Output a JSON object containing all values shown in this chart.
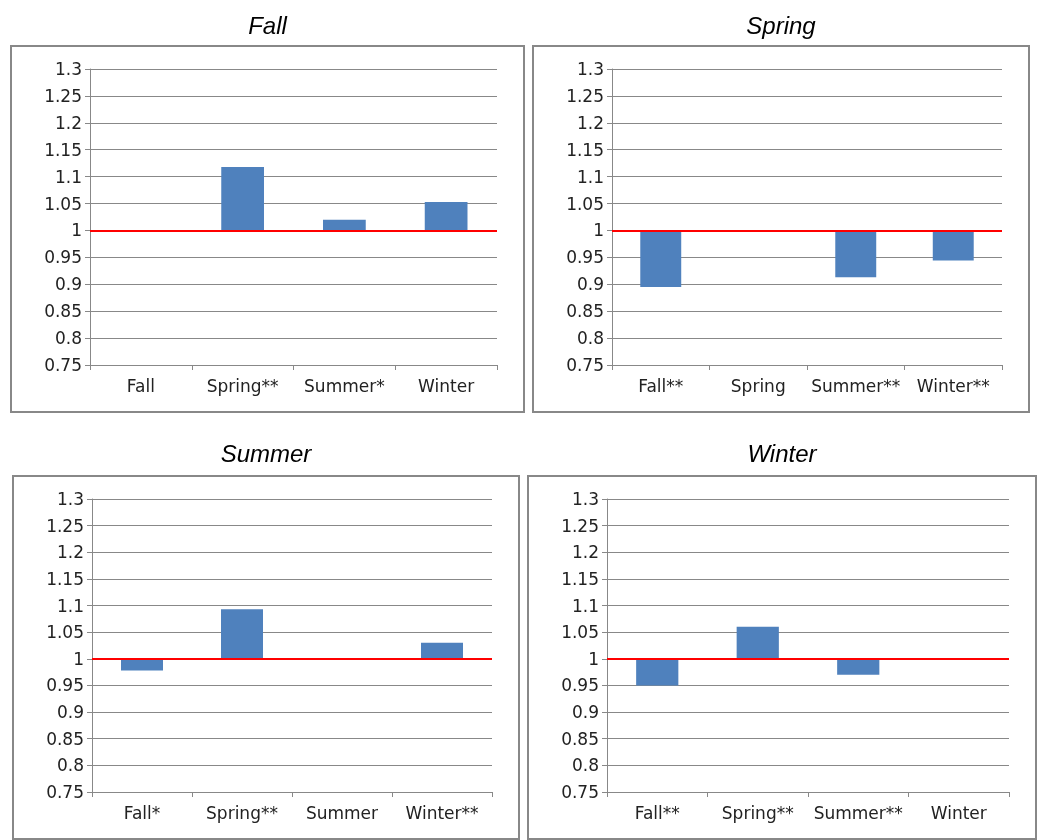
{
  "chart_data": [
    {
      "type": "bar",
      "title": "Fall",
      "categories": [
        "Fall",
        "Spring**",
        "Summer*",
        "Winter"
      ],
      "values": [
        null,
        0.118,
        0.02,
        0.053
      ],
      "base": [
        null,
        1,
        1,
        1
      ],
      "color": "#4f81bd",
      "ylim": [
        0.75,
        1.3
      ],
      "yticks": [
        0.75,
        0.8,
        0.85,
        0.9,
        0.95,
        1,
        1.05,
        1.1,
        1.15,
        1.2,
        1.25,
        1.3
      ],
      "grid": "y",
      "ref_lines": [
        {
          "axis": "y",
          "value": 1,
          "color": "#ff0000"
        }
      ]
    },
    {
      "type": "bar",
      "title": "Spring",
      "categories": [
        "Fall**",
        "Spring",
        "Summer**",
        "Winter**"
      ],
      "values": [
        -0.105,
        null,
        -0.087,
        -0.056
      ],
      "base": [
        1,
        null,
        1,
        1
      ],
      "color": "#4f81bd",
      "ylim": [
        0.75,
        1.3
      ],
      "yticks": [
        0.75,
        0.8,
        0.85,
        0.9,
        0.95,
        1,
        1.05,
        1.1,
        1.15,
        1.2,
        1.25,
        1.3
      ],
      "grid": "y",
      "ref_lines": [
        {
          "axis": "y",
          "value": 1,
          "color": "#ff0000"
        }
      ]
    },
    {
      "type": "bar",
      "title": "Summer",
      "categories": [
        "Fall*",
        "Spring**",
        "Summer",
        "Winter**"
      ],
      "values": [
        -0.022,
        0.093,
        null,
        0.03
      ],
      "base": [
        1,
        1,
        null,
        1
      ],
      "color": "#4f81bd",
      "ylim": [
        0.75,
        1.3
      ],
      "yticks": [
        0.75,
        0.8,
        0.85,
        0.9,
        0.95,
        1,
        1.05,
        1.1,
        1.15,
        1.2,
        1.25,
        1.3
      ],
      "grid": "y",
      "ref_lines": [
        {
          "axis": "y",
          "value": 1,
          "color": "#ff0000"
        }
      ]
    },
    {
      "type": "bar",
      "title": "Winter",
      "categories": [
        "Fall**",
        "Spring**",
        "Summer**",
        "Winter"
      ],
      "values": [
        -0.05,
        0.06,
        -0.03,
        null
      ],
      "base": [
        1,
        1,
        1,
        null
      ],
      "color": "#4f81bd",
      "ylim": [
        0.75,
        1.3
      ],
      "yticks": [
        0.75,
        0.8,
        0.85,
        0.9,
        0.95,
        1,
        1.05,
        1.1,
        1.15,
        1.2,
        1.25,
        1.3
      ],
      "grid": "y",
      "ref_lines": [
        {
          "axis": "y",
          "value": 1,
          "color": "#ff0000"
        }
      ]
    }
  ]
}
